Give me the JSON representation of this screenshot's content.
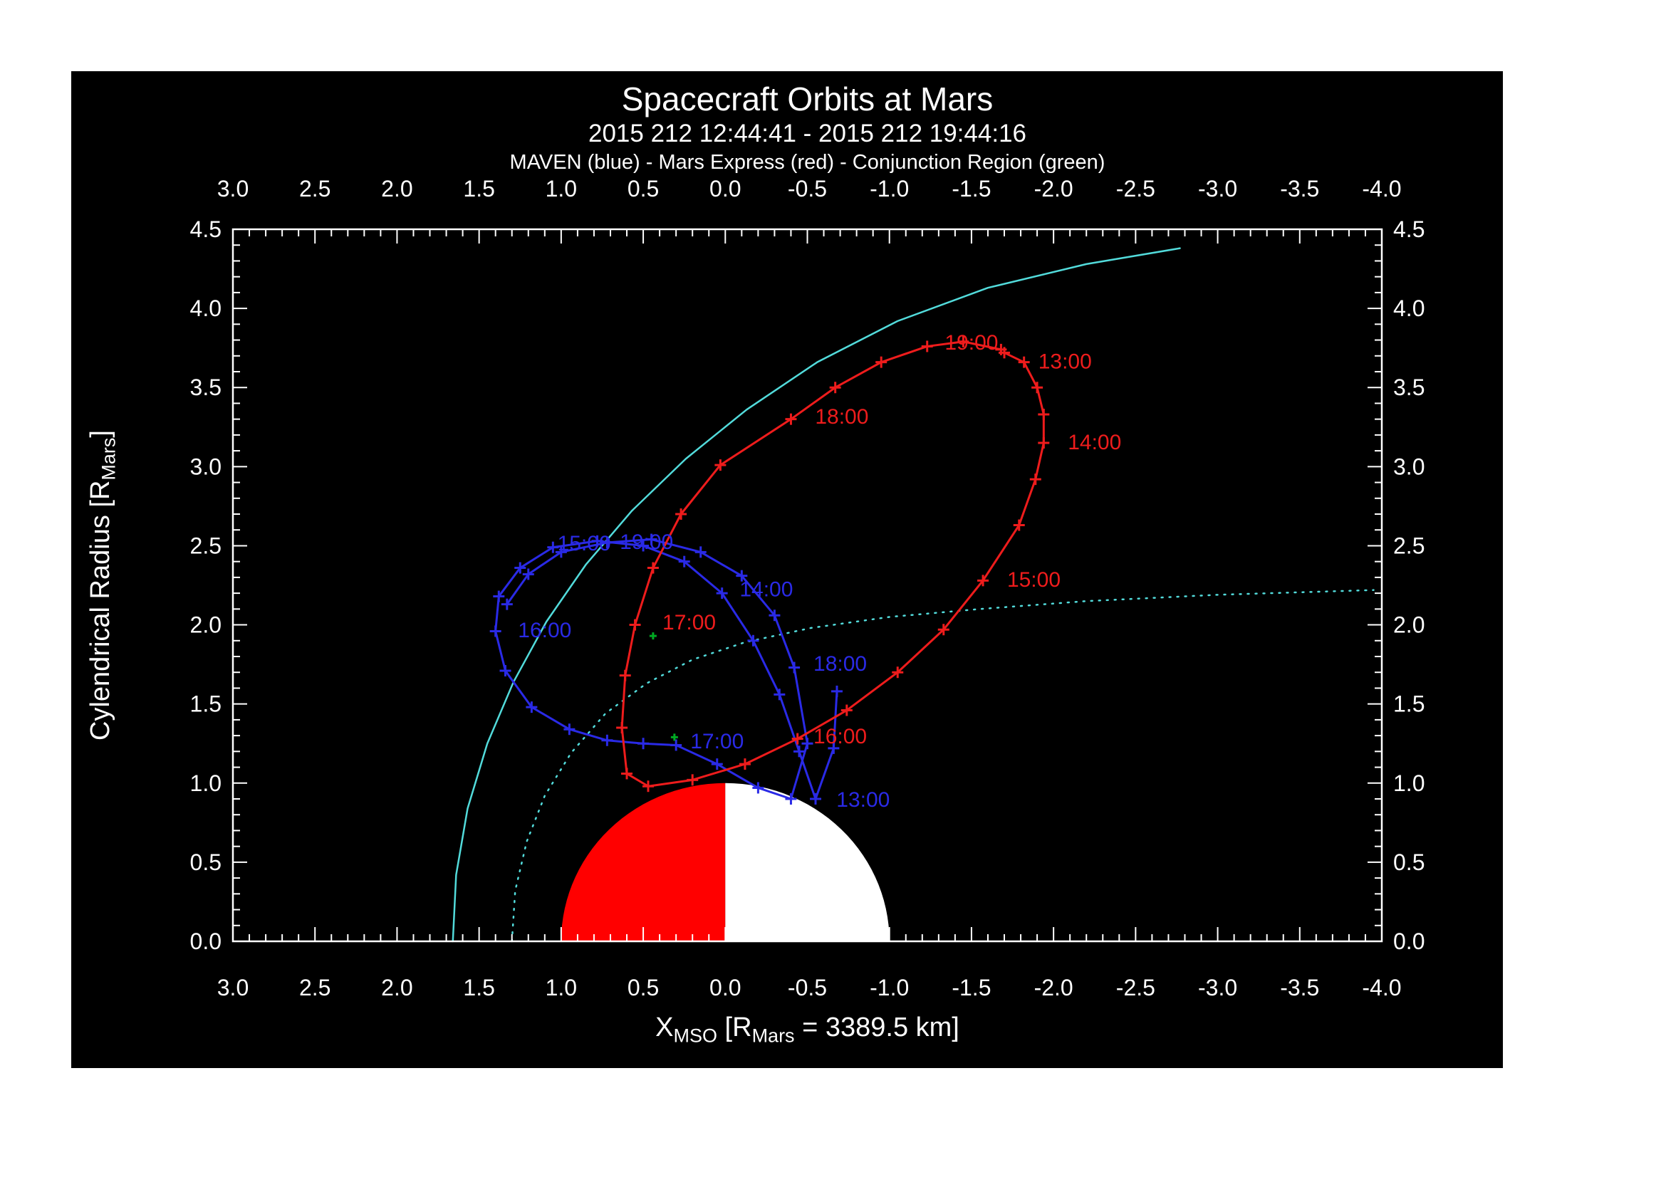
{
  "chart_data": {
    "type": "line",
    "title": "Spacecraft Orbits at Mars",
    "subtitle": "2015 212 12:44:41 - 2015 212 19:44:16",
    "legend_line": "MAVEN (blue) - Mars Express (red) - Conjunction Region (green)",
    "xlabel": {
      "main": "X",
      "main_sub": "MSO",
      "mid": " [R",
      "mid_sub": "Mars",
      "end": " = 3389.5 km]"
    },
    "ylabel": {
      "main": "Cylendrical Radius [R",
      "sub": "Mars",
      "end": "]"
    },
    "colors": {
      "frame": "#ffffff",
      "maven_blue": "#2a2ae6",
      "mex_red": "#ee1c1c",
      "boundary_cyan": "#52dbdb",
      "conjunction_green": "#00aa22",
      "planet_day": "#ff0000",
      "planet_night": "#ffffff"
    },
    "x_axis": {
      "left": 3.0,
      "right": -4.0,
      "major_ticks": [
        {
          "v": 3.0,
          "label": "3.0"
        },
        {
          "v": 2.5,
          "label": "2.5"
        },
        {
          "v": 2.0,
          "label": "2.0"
        },
        {
          "v": 1.5,
          "label": "1.5"
        },
        {
          "v": 1.0,
          "label": "1.0"
        },
        {
          "v": 0.5,
          "label": "0.5"
        },
        {
          "v": 0.0,
          "label": "0.0"
        },
        {
          "v": -0.5,
          "label": "-0.5"
        },
        {
          "v": -1.0,
          "label": "-1.0"
        },
        {
          "v": -1.5,
          "label": "-1.5"
        },
        {
          "v": -2.0,
          "label": "-2.0"
        },
        {
          "v": -2.5,
          "label": "-2.5"
        },
        {
          "v": -3.0,
          "label": "-3.0"
        },
        {
          "v": -3.5,
          "label": "-3.5"
        },
        {
          "v": -4.0,
          "label": "-4.0"
        }
      ]
    },
    "y_axis": {
      "bottom": 0.0,
      "top": 4.5,
      "major_ticks": [
        {
          "v": 0.0,
          "label": "0.0"
        },
        {
          "v": 0.5,
          "label": "0.5"
        },
        {
          "v": 1.0,
          "label": "1.0"
        },
        {
          "v": 1.5,
          "label": "1.5"
        },
        {
          "v": 2.0,
          "label": "2.0"
        },
        {
          "v": 2.5,
          "label": "2.5"
        },
        {
          "v": 3.0,
          "label": "3.0"
        },
        {
          "v": 3.5,
          "label": "3.5"
        },
        {
          "v": 4.0,
          "label": "4.0"
        },
        {
          "v": 4.5,
          "label": "4.5"
        }
      ]
    },
    "planet": {
      "radius": 1.0,
      "dayside_color": "#ff0000",
      "nightside_color": "#ffffff"
    },
    "series": [
      {
        "id": "bow-shock-boundary",
        "color": "#52dbdb",
        "style": "solid",
        "width": 2.5,
        "points": [
          [
            1.66,
            0.0
          ],
          [
            1.64,
            0.42
          ],
          [
            1.57,
            0.84
          ],
          [
            1.45,
            1.25
          ],
          [
            1.29,
            1.64
          ],
          [
            1.09,
            2.02
          ],
          [
            0.85,
            2.38
          ],
          [
            0.57,
            2.72
          ],
          [
            0.24,
            3.05
          ],
          [
            -0.13,
            3.36
          ],
          [
            -0.56,
            3.66
          ],
          [
            -1.05,
            3.92
          ],
          [
            -1.6,
            4.13
          ],
          [
            -2.2,
            4.28
          ],
          [
            -2.77,
            4.38
          ]
        ]
      },
      {
        "id": "pileup-boundary",
        "color": "#52dbdb",
        "style": "dotted",
        "width": 2.5,
        "points": [
          [
            1.3,
            0.0
          ],
          [
            1.28,
            0.32
          ],
          [
            1.21,
            0.63
          ],
          [
            1.1,
            0.92
          ],
          [
            0.94,
            1.19
          ],
          [
            0.73,
            1.44
          ],
          [
            0.48,
            1.63
          ],
          [
            0.2,
            1.78
          ],
          [
            -0.12,
            1.89
          ],
          [
            -0.52,
            1.98
          ],
          [
            -1.0,
            2.05
          ],
          [
            -1.55,
            2.1
          ],
          [
            -2.2,
            2.15
          ],
          [
            -3.0,
            2.19
          ],
          [
            -3.95,
            2.22
          ]
        ]
      },
      {
        "id": "maven-orbit",
        "name": "MAVEN",
        "color": "#2a2ae6",
        "style": "solid",
        "width": 3,
        "marker": "plus",
        "msize": 8,
        "points": [
          [
            -0.68,
            1.58
          ],
          [
            -0.66,
            1.22
          ],
          [
            -0.55,
            0.9
          ],
          [
            -0.45,
            1.2
          ],
          [
            -0.33,
            1.56
          ],
          [
            -0.17,
            1.9
          ],
          [
            0.02,
            2.2
          ],
          [
            0.25,
            2.4
          ],
          [
            0.5,
            2.5
          ],
          [
            0.78,
            2.53
          ],
          [
            1.05,
            2.49
          ],
          [
            1.25,
            2.36
          ],
          [
            1.38,
            2.18
          ],
          [
            1.4,
            1.96
          ],
          [
            1.34,
            1.71
          ],
          [
            1.18,
            1.48
          ],
          [
            0.95,
            1.34
          ],
          [
            0.72,
            1.27
          ],
          [
            0.5,
            1.25
          ],
          [
            0.3,
            1.24
          ],
          [
            0.05,
            1.12
          ],
          [
            -0.2,
            0.97
          ],
          [
            -0.4,
            0.9
          ],
          [
            -0.5,
            1.25
          ],
          [
            -0.42,
            1.73
          ],
          [
            -0.3,
            2.06
          ],
          [
            -0.1,
            2.31
          ],
          [
            0.15,
            2.46
          ],
          [
            0.45,
            2.54
          ],
          [
            0.72,
            2.52
          ],
          [
            1.0,
            2.46
          ],
          [
            1.2,
            2.32
          ],
          [
            1.33,
            2.13
          ]
        ]
      },
      {
        "id": "mex-orbit",
        "name": "Mars Express",
        "color": "#ee1c1c",
        "style": "solid",
        "width": 3,
        "marker": "plus",
        "msize": 8,
        "points": [
          [
            -1.7,
            3.72
          ],
          [
            -1.82,
            3.66
          ],
          [
            -1.9,
            3.5
          ],
          [
            -1.94,
            3.33
          ],
          [
            -1.94,
            3.15
          ],
          [
            -1.89,
            2.92
          ],
          [
            -1.79,
            2.63
          ],
          [
            -1.57,
            2.28
          ],
          [
            -1.33,
            1.97
          ],
          [
            -1.05,
            1.7
          ],
          [
            -0.74,
            1.46
          ],
          [
            -0.44,
            1.28
          ],
          [
            -0.12,
            1.12
          ],
          [
            0.2,
            1.02
          ],
          [
            0.47,
            0.98
          ],
          [
            0.6,
            1.06
          ],
          [
            0.63,
            1.35
          ],
          [
            0.61,
            1.68
          ],
          [
            0.55,
            2.0
          ],
          [
            0.44,
            2.36
          ],
          [
            0.27,
            2.7
          ],
          [
            0.03,
            3.01
          ],
          [
            -0.4,
            3.3
          ],
          [
            -0.67,
            3.5
          ],
          [
            -0.95,
            3.66
          ],
          [
            -1.23,
            3.76
          ],
          [
            -1.45,
            3.79
          ],
          [
            -1.68,
            3.74
          ]
        ]
      },
      {
        "id": "conjunction-region",
        "name": "Conjunction Region",
        "color": "#00aa22",
        "style": "none",
        "marker": "plus",
        "msize": 5,
        "points": [
          [
            0.44,
            1.93
          ],
          [
            0.31,
            1.29
          ]
        ]
      }
    ],
    "time_labels": [
      {
        "series": "mex-orbit",
        "text": "13:00",
        "x": -2.07,
        "y": 3.67
      },
      {
        "series": "mex-orbit",
        "text": "14:00",
        "x": -2.25,
        "y": 3.16
      },
      {
        "series": "mex-orbit",
        "text": "15:00",
        "x": -1.88,
        "y": 2.29
      },
      {
        "series": "mex-orbit",
        "text": "16:00",
        "x": -0.7,
        "y": 1.3
      },
      {
        "series": "mex-orbit",
        "text": "17:00",
        "x": 0.22,
        "y": 2.02
      },
      {
        "series": "mex-orbit",
        "text": "18:00",
        "x": -0.71,
        "y": 3.32
      },
      {
        "series": "mex-orbit",
        "text": "19:00",
        "x": -1.5,
        "y": 3.79
      },
      {
        "series": "maven-orbit",
        "text": "13:00",
        "x": -0.84,
        "y": 0.9
      },
      {
        "series": "maven-orbit",
        "text": "14:00",
        "x": -0.25,
        "y": 2.23
      },
      {
        "series": "maven-orbit",
        "text": "15:00",
        "x": 0.86,
        "y": 2.52
      },
      {
        "series": "maven-orbit",
        "text": "16:00",
        "x": 1.1,
        "y": 1.97
      },
      {
        "series": "maven-orbit",
        "text": "17:00",
        "x": 0.05,
        "y": 1.27
      },
      {
        "series": "maven-orbit",
        "text": "18:00",
        "x": -0.7,
        "y": 1.76
      },
      {
        "series": "maven-orbit",
        "text": "19:00",
        "x": 0.48,
        "y": 2.53
      }
    ]
  }
}
